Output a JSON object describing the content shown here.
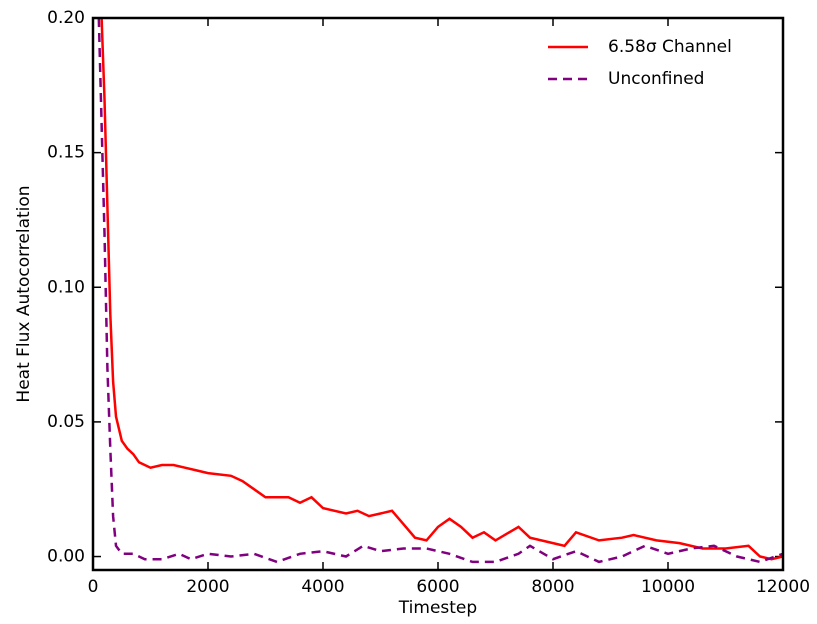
{
  "chart_data": {
    "type": "line",
    "xlabel": "Timestep",
    "ylabel": "Heat Flux Autocorrelation",
    "xlim": [
      0,
      12000
    ],
    "ylim": [
      -0.005,
      0.2
    ],
    "xticks": [
      0,
      2000,
      4000,
      6000,
      8000,
      10000,
      12000
    ],
    "yticks": [
      {
        "value": 0,
        "label": "0.00"
      },
      {
        "value": 0.05,
        "label": "0.05"
      },
      {
        "value": 0.1,
        "label": "0.10"
      },
      {
        "value": 0.15,
        "label": "0.15"
      },
      {
        "value": 0.2,
        "label": "0.20"
      }
    ],
    "legend": "upper right",
    "series": [
      {
        "name": "6.58σ Channel",
        "color": "#ff0000",
        "dash": false,
        "x": [
          150,
          200,
          250,
          300,
          350,
          400,
          500,
          600,
          700,
          800,
          1000,
          1200,
          1400,
          1600,
          1800,
          2000,
          2400,
          2600,
          2800,
          3000,
          3400,
          3600,
          3800,
          4000,
          4400,
          4600,
          4800,
          5000,
          5200,
          5400,
          5600,
          5800,
          6000,
          6200,
          6400,
          6600,
          6800,
          7000,
          7400,
          7600,
          8000,
          8200,
          8400,
          8800,
          9200,
          9400,
          9800,
          10200,
          10600,
          11000,
          11400,
          11600,
          11800,
          12000
        ],
        "values": [
          0.2,
          0.17,
          0.13,
          0.09,
          0.065,
          0.052,
          0.043,
          0.04,
          0.038,
          0.035,
          0.033,
          0.034,
          0.034,
          0.033,
          0.032,
          0.031,
          0.03,
          0.028,
          0.025,
          0.022,
          0.022,
          0.02,
          0.022,
          0.018,
          0.016,
          0.017,
          0.015,
          0.016,
          0.017,
          0.012,
          0.007,
          0.006,
          0.011,
          0.014,
          0.011,
          0.007,
          0.009,
          0.006,
          0.011,
          0.007,
          0.005,
          0.004,
          0.009,
          0.006,
          0.007,
          0.008,
          0.006,
          0.005,
          0.003,
          0.003,
          0.004,
          0.0,
          -0.001,
          0.0
        ]
      },
      {
        "name": "Unconfined",
        "color": "#800080",
        "dash": true,
        "x": [
          100,
          200,
          250,
          300,
          350,
          400,
          500,
          700,
          900,
          1200,
          1500,
          1700,
          2000,
          2400,
          2800,
          3200,
          3600,
          4000,
          4400,
          4700,
          5000,
          5400,
          5800,
          6200,
          6600,
          7000,
          7400,
          7600,
          8000,
          8400,
          8800,
          9200,
          9600,
          10000,
          10400,
          10800,
          11200,
          11600,
          12000
        ],
        "values": [
          0.2,
          0.12,
          0.07,
          0.04,
          0.015,
          0.004,
          0.001,
          0.001,
          -0.001,
          -0.001,
          0.001,
          -0.001,
          0.001,
          0.0,
          0.001,
          -0.002,
          0.001,
          0.002,
          0.0,
          0.004,
          0.002,
          0.003,
          0.003,
          0.001,
          -0.002,
          -0.002,
          0.001,
          0.004,
          -0.001,
          0.002,
          -0.002,
          0.0,
          0.004,
          0.001,
          0.003,
          0.004,
          0.0,
          -0.002,
          0.001
        ]
      }
    ]
  }
}
